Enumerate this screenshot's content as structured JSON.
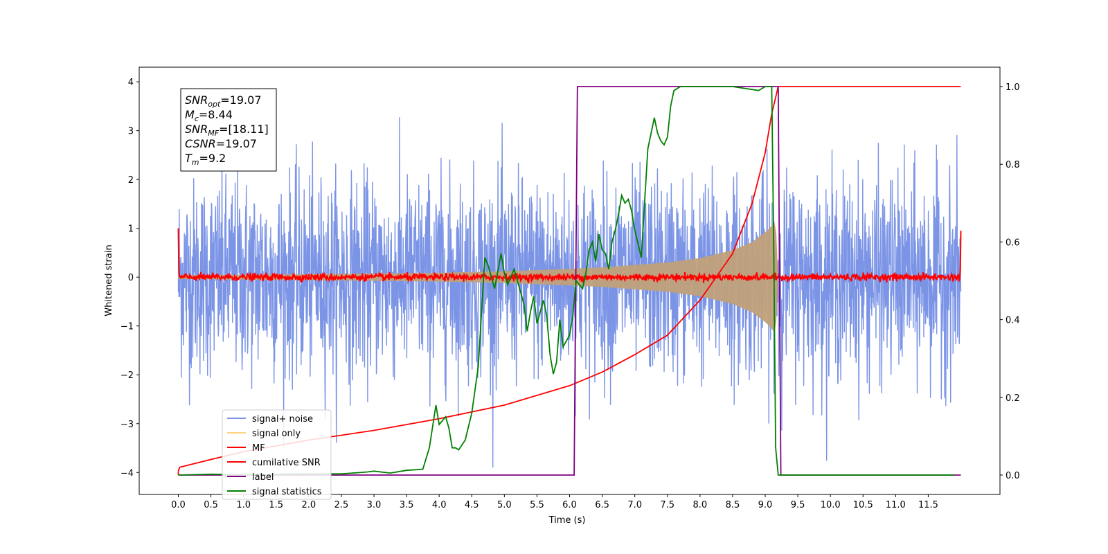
{
  "chart_data": {
    "type": "line",
    "xlabel": "Time (s)",
    "ylabel_left": "Whitened strain",
    "xlim": [
      -0.6,
      12.6
    ],
    "ylim_left": [
      -4.45,
      4.3
    ],
    "ylim_right": [
      -0.05,
      1.05
    ],
    "x_ticks": [
      "0.0",
      "0.5",
      "1.0",
      "1.5",
      "2.0",
      "2.5",
      "3.0",
      "3.5",
      "4.0",
      "4.5",
      "5.0",
      "5.5",
      "6.0",
      "6.5",
      "7.0",
      "7.5",
      "8.0",
      "8.5",
      "9.0",
      "9.5",
      "10.0",
      "10.5",
      "11.0",
      "11.5"
    ],
    "y_ticks_left": [
      "4",
      "3",
      "2",
      "1",
      "0",
      "−1",
      "−2",
      "−3",
      "−4"
    ],
    "y_ticks_right": [
      "1.0",
      "0.8",
      "0.6",
      "0.4",
      "0.2",
      "0.0"
    ],
    "annotation": {
      "snr_opt": {
        "sym": "SNR",
        "sub": "opt",
        "val": "=19.07"
      },
      "mc": {
        "sym": "M",
        "sub": "c",
        "val": "=8.44"
      },
      "snr_mf": {
        "sym": "SNR",
        "sub": "MF",
        "val": "=[18.11]"
      },
      "csnr": {
        "sym": "CSNR",
        "sub": "",
        "val": "=19.07"
      },
      "tm": {
        "sym": "T",
        "sub": "m",
        "val": "=9.2"
      }
    },
    "legend": [
      "signal+ noise",
      "signal only",
      "MF",
      "cumilative SNR",
      "label",
      "signal statistics"
    ],
    "legend_placement": "bottom-left",
    "series": [
      {
        "name": "signal+ noise",
        "axis": "left",
        "color": "#7b94e6",
        "envelope": {
          "x": [
            0,
            12
          ],
          "typical_upper": 2.0,
          "typical_lower": -2.0,
          "extreme_upper": 3.8,
          "extreme_lower": -3.9
        }
      },
      {
        "name": "signal only",
        "axis": "left",
        "color": "#c0a079",
        "envelope": {
          "x": [
            0,
            2,
            4,
            5,
            6,
            6.5,
            7,
            7.5,
            8,
            8.5,
            8.8,
            9.0,
            9.1,
            9.16,
            9.2
          ],
          "amp": [
            0.04,
            0.06,
            0.09,
            0.12,
            0.17,
            0.2,
            0.25,
            0.3,
            0.39,
            0.55,
            0.72,
            0.92,
            1.05,
            1.2,
            0.0
          ]
        }
      },
      {
        "name": "MF",
        "axis": "left",
        "color": "#ff0000",
        "noise_amplitude": 0.06,
        "start_value": 1.0,
        "end_value": 0.95
      },
      {
        "name": "cumilative SNR",
        "axis": "right",
        "color": "#ff0000",
        "x": [
          0,
          0.02,
          0.5,
          1,
          2,
          3,
          4,
          5,
          6,
          6.5,
          7,
          7.5,
          8,
          8.5,
          8.8,
          9.0,
          9.1,
          9.2,
          12
        ],
        "y": [
          0.01,
          0.02,
          0.04,
          0.06,
          0.09,
          0.115,
          0.145,
          0.18,
          0.23,
          0.265,
          0.31,
          0.36,
          0.45,
          0.57,
          0.7,
          0.83,
          0.93,
          1.0,
          1.0
        ]
      },
      {
        "name": "label",
        "axis": "right",
        "color": "#800080",
        "x": [
          0,
          6.07,
          6.12,
          9.2,
          9.24,
          12
        ],
        "y": [
          0,
          0,
          1,
          1,
          0,
          0
        ]
      },
      {
        "name": "signal statistics",
        "axis": "right",
        "color": "#008000",
        "x": [
          0,
          0.5,
          1,
          1.5,
          2,
          2.5,
          2.75,
          2.9,
          3.0,
          3.25,
          3.5,
          3.75,
          3.85,
          3.95,
          4.0,
          4.05,
          4.1,
          4.15,
          4.2,
          4.25,
          4.3,
          4.4,
          4.5,
          4.6,
          4.7,
          4.75,
          4.85,
          4.95,
          5.0,
          5.05,
          5.1,
          5.15,
          5.2,
          5.25,
          5.3,
          5.35,
          5.4,
          5.45,
          5.5,
          5.55,
          5.6,
          5.65,
          5.7,
          5.75,
          5.8,
          5.85,
          5.9,
          6.0,
          6.05,
          6.1,
          6.15,
          6.2,
          6.25,
          6.3,
          6.35,
          6.4,
          6.45,
          6.5,
          6.55,
          6.6,
          6.65,
          6.7,
          6.75,
          6.8,
          6.85,
          6.9,
          6.95,
          7.0,
          7.1,
          7.2,
          7.25,
          7.3,
          7.35,
          7.4,
          7.45,
          7.5,
          7.55,
          7.6,
          7.7,
          7.8,
          8.0,
          8.5,
          8.9,
          9.0,
          9.1,
          9.13,
          9.16,
          9.2,
          9.3,
          9.5,
          10,
          11,
          11.9
        ],
        "y": [
          0,
          0.002,
          0.001,
          0.002,
          0.003,
          0.003,
          0.006,
          0.008,
          0.01,
          0.005,
          0.012,
          0.015,
          0.07,
          0.18,
          0.13,
          0.14,
          0.15,
          0.12,
          0.07,
          0.07,
          0.065,
          0.09,
          0.16,
          0.28,
          0.56,
          0.54,
          0.48,
          0.57,
          0.52,
          0.49,
          0.51,
          0.53,
          0.5,
          0.47,
          0.44,
          0.37,
          0.42,
          0.46,
          0.39,
          0.42,
          0.45,
          0.41,
          0.31,
          0.26,
          0.29,
          0.4,
          0.33,
          0.36,
          0.41,
          0.5,
          0.49,
          0.48,
          0.52,
          0.58,
          0.6,
          0.55,
          0.62,
          0.58,
          0.57,
          0.53,
          0.6,
          0.63,
          0.67,
          0.72,
          0.7,
          0.71,
          0.68,
          0.63,
          0.56,
          0.84,
          0.88,
          0.92,
          0.88,
          0.86,
          0.85,
          0.87,
          0.95,
          0.99,
          1.0,
          1.0,
          1.0,
          1.0,
          0.99,
          1.0,
          1.0,
          0.6,
          0.07,
          0.0,
          0.0,
          0.0,
          0.0,
          0.0,
          0.0
        ]
      }
    ]
  }
}
